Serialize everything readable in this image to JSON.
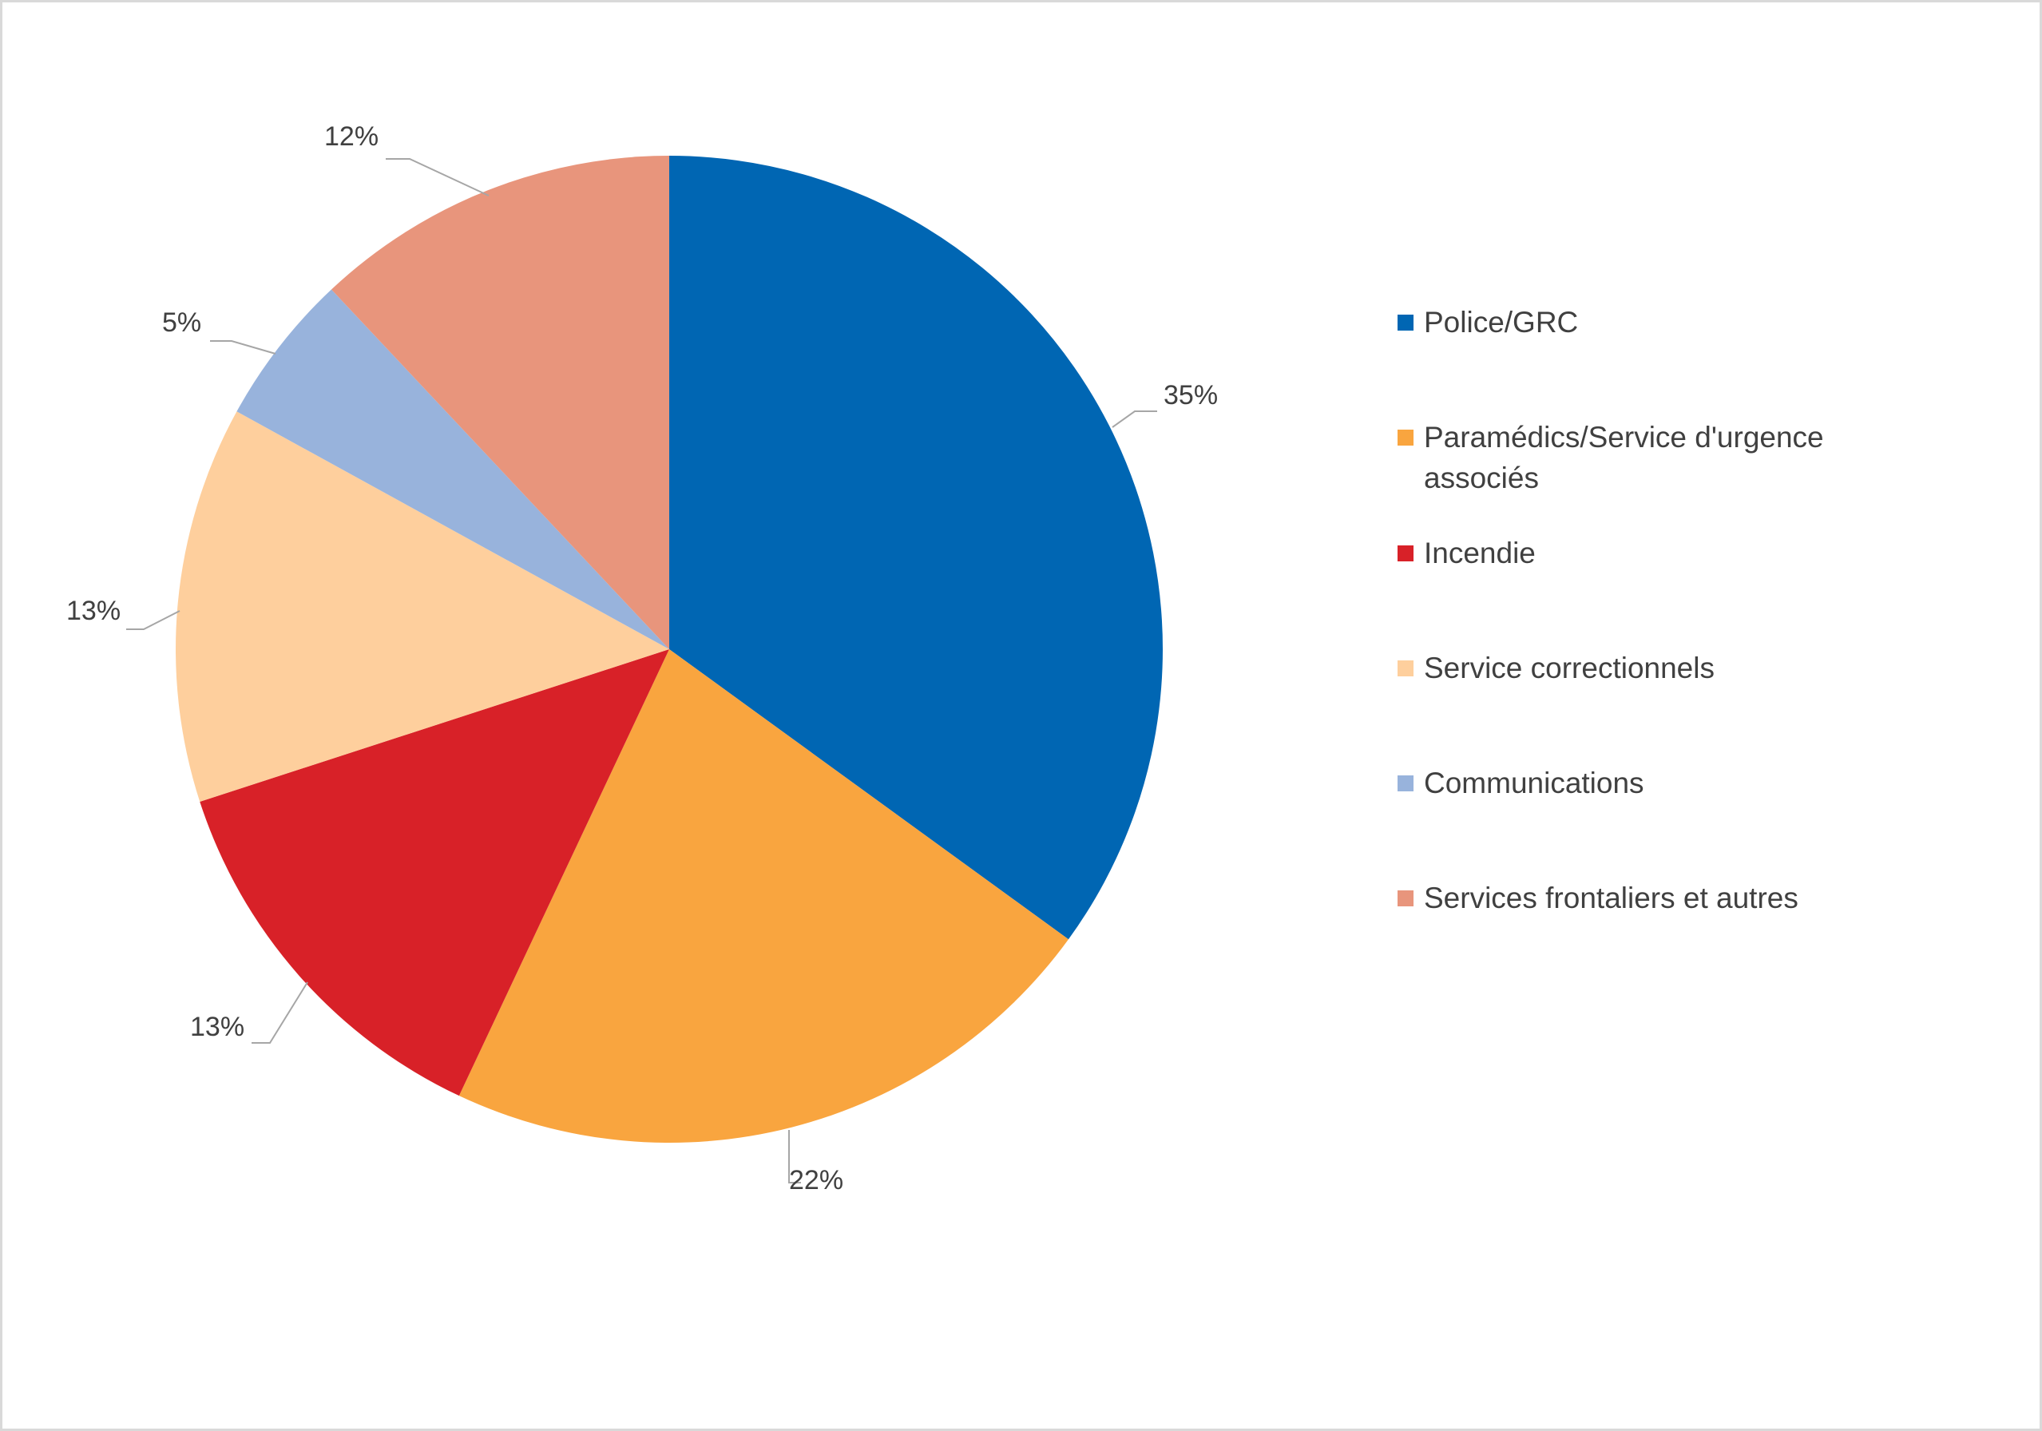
{
  "chart_data": {
    "type": "pie",
    "series": [
      {
        "values": [
          35,
          22,
          13,
          13,
          5,
          12
        ]
      }
    ],
    "categories": [
      "Police/GRC",
      "Paramédics/Service d'urgence associés",
      "Incendie",
      "Service correctionnels",
      "Communications",
      "Services frontaliers et autres"
    ],
    "data_labels": [
      "35%",
      "22%",
      "13%",
      "13%",
      "5%",
      "12%"
    ],
    "colors": [
      "#0066b3",
      "#f9a53f",
      "#d82128",
      "#fecf9d",
      "#98b3dc",
      "#e8957c"
    ],
    "legend_position": "right",
    "start_angle": "12 o'clock, clockwise"
  }
}
